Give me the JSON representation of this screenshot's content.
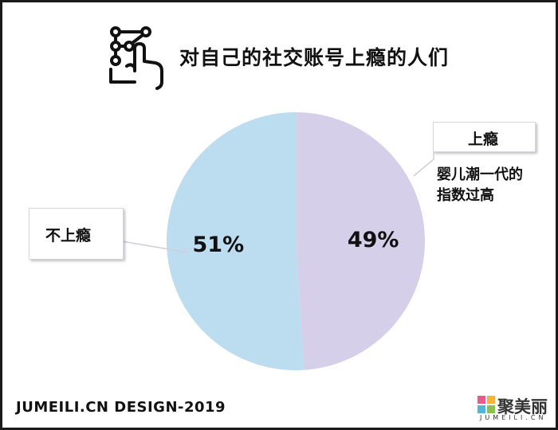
{
  "title": "对自己的社交账号上瘾的人们",
  "title_icon": "hand-touch-network-icon",
  "chart_data": {
    "type": "pie",
    "slices": [
      {
        "label": "上瘾",
        "value": 49,
        "display": "49%",
        "color": "#d6cfe9"
      },
      {
        "label": "不上瘾",
        "value": 51,
        "display": "51%",
        "color": "#bcdcef"
      }
    ],
    "start": "top",
    "direction": "clockwise"
  },
  "callouts": {
    "addicted": "上瘾",
    "not_addicted": "不上瘾",
    "note_line1": "婴儿潮一代的",
    "note_line2": "指数过高"
  },
  "footer": "JUMEILI.CN DESIGN-2019",
  "logo": {
    "name": "聚美丽",
    "sub": "JUMEILI.CN",
    "icon": "jumeili-logo-icon"
  }
}
